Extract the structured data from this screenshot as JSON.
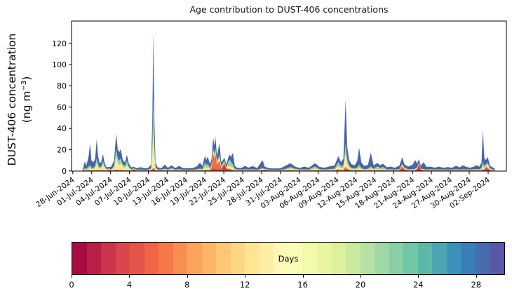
{
  "chart_data": {
    "type": "area",
    "stacked": true,
    "title": "Age contribution to DUST-406 concentrations",
    "ylabel_line1": "DUST-406 concentration",
    "ylabel_units_pre": "(ng m",
    "ylabel_units_sup": "−3",
    "ylabel_units_post": ")",
    "y_ticks": [
      0,
      20,
      40,
      60,
      80,
      100,
      120
    ],
    "y_domain": [
      0,
      141
    ],
    "x_domain_days": [
      -0.2,
      68.9
    ],
    "x_tick_days": [
      0,
      3,
      6,
      9,
      12,
      15,
      18,
      21,
      24,
      27,
      30,
      33,
      36,
      39,
      42,
      45,
      48,
      51,
      54,
      57,
      60,
      63,
      66
    ],
    "x_tick_labels": [
      "28-Jun-2024",
      "01-Jul-2024",
      "04-Jul-2024",
      "07-Jul-2024",
      "10-Jul-2024",
      "13-Jul-2024",
      "16-Jul-2024",
      "19-Jul-2024",
      "22-Jul-2024",
      "25-Jul-2024",
      "28-Jul-2024",
      "31-Jul-2024",
      "03-Aug-2024",
      "06-Aug-2024",
      "09-Aug-2024",
      "12-Aug-2024",
      "15-Aug-2024",
      "18-Aug-2024",
      "21-Aug-2024",
      "24-Aug-2024",
      "27-Aug-2024",
      "30-Aug-2024",
      "02-Sep-2024"
    ],
    "grid": false,
    "legend": "none",
    "bands": [
      {
        "name": "age-0-4-days",
        "color": "#c93a4c"
      },
      {
        "name": "age-4-8-days",
        "color": "#ef6c44"
      },
      {
        "name": "age-8-14-days",
        "color": "#fdea9b"
      },
      {
        "name": "age-14-20-days",
        "color": "#97d5a5"
      },
      {
        "name": "age-20-30-days",
        "color": "#4a62aa"
      }
    ],
    "points_format": [
      "day_since_28_jun",
      "band0",
      "band1",
      "band2",
      "band3",
      "band4"
    ],
    "points": [
      [
        1.45,
        0,
        0,
        0,
        0,
        0
      ],
      [
        1.6,
        0.3,
        0.2,
        0.2,
        0.2,
        0.8
      ],
      [
        1.9,
        0.4,
        0.3,
        0.8,
        1,
        6.5
      ],
      [
        2.15,
        0.3,
        0.3,
        0.6,
        0.8,
        3
      ],
      [
        2.5,
        0.4,
        0.3,
        1.5,
        2,
        9
      ],
      [
        2.75,
        0.4,
        0.4,
        2,
        3,
        20
      ],
      [
        2.95,
        0.3,
        0.3,
        1,
        1.5,
        7
      ],
      [
        3.3,
        0.3,
        0.3,
        1,
        1.5,
        5
      ],
      [
        3.55,
        0.3,
        0.3,
        2,
        2,
        7
      ],
      [
        3.8,
        0.4,
        0.5,
        6,
        5,
        18
      ],
      [
        4.0,
        0.3,
        0.4,
        3,
        3,
        8
      ],
      [
        4.25,
        0.3,
        0.3,
        1.5,
        1.5,
        4
      ],
      [
        4.5,
        0.3,
        0.3,
        2,
        1.5,
        4
      ],
      [
        4.8,
        0.4,
        0.4,
        5.5,
        3,
        6.5
      ],
      [
        5.05,
        0.3,
        0.3,
        2.5,
        1.5,
        3
      ],
      [
        5.35,
        0.3,
        0.2,
        0.8,
        0.6,
        1.6
      ],
      [
        5.75,
        1.1,
        0.3,
        0.5,
        0.4,
        1.5
      ],
      [
        6.1,
        0.3,
        0.2,
        0.5,
        0.5,
        2.5
      ],
      [
        6.55,
        0.4,
        0.3,
        2,
        2,
        5
      ],
      [
        6.9,
        0.5,
        0.8,
        12,
        8,
        14
      ],
      [
        7.15,
        0.4,
        0.5,
        6,
        5,
        8
      ],
      [
        7.45,
        0.4,
        0.4,
        5,
        4,
        8
      ],
      [
        7.6,
        0.4,
        0.5,
        6,
        5,
        9
      ],
      [
        7.95,
        0.3,
        0.4,
        3,
        2.5,
        4
      ],
      [
        8.3,
        0.3,
        0.3,
        2,
        2,
        3.5
      ],
      [
        8.6,
        0.3,
        0.4,
        5,
        4,
        5.5
      ],
      [
        8.9,
        0.3,
        0.3,
        2,
        1.5,
        3
      ],
      [
        9.3,
        0.3,
        0.2,
        0.6,
        0.5,
        1.8
      ],
      [
        9.7,
        1.2,
        0.4,
        0.5,
        0.4,
        1.5
      ],
      [
        10.1,
        0.3,
        0.2,
        0.4,
        0.3,
        1.4
      ],
      [
        10.8,
        0.3,
        0.2,
        0.4,
        0.4,
        2.2
      ],
      [
        11.4,
        0.3,
        0.2,
        0.3,
        0.3,
        1.4
      ],
      [
        12.0,
        0.3,
        0.2,
        0.4,
        0.4,
        1.7
      ],
      [
        12.45,
        0.3,
        0.3,
        1,
        1,
        3.5
      ],
      [
        12.65,
        0.6,
        1.2,
        14,
        12,
        24
      ],
      [
        12.8,
        1,
        2,
        35,
        30,
        63
      ],
      [
        12.95,
        0.8,
        1.5,
        13,
        11,
        24
      ],
      [
        13.15,
        0.3,
        0.3,
        1.5,
        1.5,
        4
      ],
      [
        13.5,
        0.3,
        0.2,
        0.5,
        0.4,
        1.8
      ],
      [
        14.1,
        0.3,
        0.2,
        0.4,
        0.4,
        1.5
      ],
      [
        14.6,
        0.3,
        0.3,
        0.8,
        0.8,
        3.8
      ],
      [
        15.1,
        0.3,
        0.2,
        0.4,
        0.4,
        1.7
      ],
      [
        15.7,
        0.3,
        0.3,
        1,
        1.2,
        2.5
      ],
      [
        16.3,
        0.3,
        0.2,
        0.4,
        0.3,
        1.5
      ],
      [
        16.9,
        0.3,
        0.3,
        0.6,
        0.6,
        3
      ],
      [
        17.5,
        0.3,
        0.2,
        0.4,
        0.3,
        1.5
      ],
      [
        18.3,
        0.3,
        0.2,
        0.3,
        0.3,
        1.4
      ],
      [
        19.1,
        0.3,
        0.2,
        0.4,
        0.3,
        1.6
      ],
      [
        19.7,
        0.4,
        0.3,
        0.5,
        0.5,
        2.5
      ],
      [
        20.2,
        0.4,
        0.3,
        0.8,
        0.8,
        5.5
      ],
      [
        20.6,
        0.3,
        0.3,
        0.6,
        0.6,
        3
      ],
      [
        21.0,
        0.4,
        0.5,
        3,
        4,
        6.5
      ],
      [
        21.2,
        0.3,
        0.4,
        2,
        2.5,
        5
      ],
      [
        21.45,
        0.4,
        0.5,
        2.5,
        3.5,
        6.5
      ],
      [
        21.8,
        0.3,
        0.3,
        1,
        1.2,
        3.5
      ],
      [
        22.05,
        0.8,
        3,
        1.5,
        1,
        5
      ],
      [
        22.3,
        2,
        14,
        3,
        2,
        10
      ],
      [
        22.5,
        1.5,
        10,
        2.5,
        2,
        8
      ],
      [
        22.65,
        2,
        15,
        3,
        2,
        11
      ],
      [
        22.9,
        1,
        5,
        1.5,
        1.5,
        5
      ],
      [
        23.3,
        1.5,
        8,
        3,
        3,
        10.5
      ],
      [
        23.6,
        0.5,
        2,
        1,
        1,
        3.5
      ],
      [
        24.1,
        6,
        2,
        1,
        0.8,
        2.5
      ],
      [
        24.4,
        1.5,
        0.8,
        0.8,
        0.8,
        2.5
      ],
      [
        24.85,
        1,
        1,
        3,
        6,
        4.5
      ],
      [
        25.1,
        0.8,
        0.8,
        2.5,
        5,
        4
      ],
      [
        25.45,
        0.5,
        0.5,
        2,
        3,
        11
      ],
      [
        25.75,
        0.3,
        0.3,
        0.8,
        0.8,
        2.5
      ],
      [
        26.2,
        0.3,
        0.2,
        0.4,
        0.4,
        1.5
      ],
      [
        26.8,
        0.3,
        0.2,
        0.4,
        0.4,
        1.6
      ],
      [
        27.4,
        0.3,
        0.3,
        0.5,
        0.5,
        3.2
      ],
      [
        27.9,
        0.3,
        0.2,
        0.4,
        0.4,
        1.8
      ],
      [
        28.6,
        0.3,
        0.3,
        0.5,
        0.5,
        3
      ],
      [
        29.3,
        0.3,
        0.2,
        0.4,
        0.3,
        1.5
      ],
      [
        30.15,
        0.4,
        0.3,
        1,
        1,
        7.5
      ],
      [
        30.5,
        1,
        0.3,
        0.5,
        0.4,
        1.8
      ],
      [
        31.2,
        0.3,
        0.2,
        0.4,
        0.3,
        1.4
      ],
      [
        32.0,
        0.3,
        0.2,
        0.3,
        0.3,
        1.3
      ],
      [
        33.0,
        0.3,
        0.2,
        0.3,
        0.3,
        1.4
      ],
      [
        33.8,
        0.4,
        0.3,
        0.6,
        0.6,
        3
      ],
      [
        34.6,
        0.4,
        0.4,
        1.5,
        1.5,
        3.5
      ],
      [
        35.3,
        0.3,
        0.3,
        0.8,
        0.8,
        2
      ],
      [
        36.0,
        0.3,
        0.2,
        0.4,
        0.4,
        1.5
      ],
      [
        36.8,
        0.3,
        0.3,
        0.5,
        0.5,
        2.5
      ],
      [
        37.5,
        0.3,
        0.2,
        0.4,
        0.4,
        1.7
      ],
      [
        38.5,
        0.4,
        0.4,
        1.5,
        2,
        3
      ],
      [
        39.2,
        0.3,
        0.3,
        0.6,
        0.6,
        2
      ],
      [
        40.0,
        0.3,
        0.2,
        0.4,
        0.4,
        1.7
      ],
      [
        40.8,
        0.3,
        0.3,
        0.6,
        0.6,
        2.5
      ],
      [
        41.6,
        0.3,
        0.3,
        0.8,
        0.8,
        3
      ],
      [
        42.2,
        0.5,
        1,
        3,
        4,
        5.5
      ],
      [
        42.6,
        0.4,
        0.5,
        1.5,
        2,
        4
      ],
      [
        43.0,
        0.4,
        0.5,
        2,
        2.5,
        6
      ],
      [
        43.35,
        1.5,
        2.5,
        12,
        10,
        41
      ],
      [
        43.6,
        0.8,
        1.2,
        5,
        4,
        12
      ],
      [
        43.9,
        0.5,
        0.8,
        2,
        2,
        5
      ],
      [
        44.3,
        0.4,
        0.4,
        1,
        1,
        3.5
      ],
      [
        44.8,
        0.4,
        0.3,
        0.8,
        0.8,
        3
      ],
      [
        45.2,
        0.4,
        0.4,
        1.2,
        1.5,
        6
      ],
      [
        45.5,
        0.4,
        0.6,
        2,
        3,
        16
      ],
      [
        45.85,
        0.3,
        0.4,
        1,
        1.2,
        5
      ],
      [
        46.3,
        0.3,
        0.3,
        0.6,
        0.6,
        3
      ],
      [
        46.9,
        0.3,
        0.3,
        0.8,
        0.8,
        3.5
      ],
      [
        47.35,
        0.4,
        0.4,
        1.5,
        2,
        13
      ],
      [
        47.8,
        0.3,
        0.3,
        0.8,
        0.8,
        3
      ],
      [
        48.4,
        0.4,
        0.4,
        1.2,
        2.5,
        3
      ],
      [
        48.8,
        0.3,
        0.3,
        0.8,
        1.5,
        2.5
      ],
      [
        49.3,
        0.4,
        0.4,
        1,
        2,
        3
      ],
      [
        49.9,
        0.3,
        0.2,
        0.5,
        0.5,
        2
      ],
      [
        50.5,
        0.3,
        0.3,
        0.5,
        0.5,
        2.5
      ],
      [
        51.2,
        0.3,
        0.2,
        0.4,
        0.4,
        1.7
      ],
      [
        51.9,
        0.3,
        0.3,
        0.6,
        0.5,
        3.3
      ],
      [
        52.35,
        2.5,
        2,
        1.2,
        1,
        6.3
      ],
      [
        52.7,
        0.8,
        0.8,
        0.8,
        0.8,
        3
      ],
      [
        53.3,
        0.3,
        0.3,
        0.5,
        0.5,
        2.5
      ],
      [
        54.0,
        0.3,
        0.3,
        0.6,
        0.6,
        4
      ],
      [
        54.4,
        0.3,
        0.3,
        0.8,
        0.8,
        8
      ],
      [
        54.75,
        1.5,
        0.5,
        0.8,
        0.7,
        3.5
      ],
      [
        55.0,
        5.5,
        1,
        0.8,
        0.6,
        3.3
      ],
      [
        55.3,
        1,
        0.4,
        0.5,
        0.5,
        2.5
      ],
      [
        55.75,
        0.3,
        0.3,
        0.6,
        0.6,
        6.5
      ],
      [
        56.2,
        0.3,
        0.2,
        0.5,
        0.4,
        2.5
      ],
      [
        56.8,
        0.3,
        0.3,
        0.5,
        0.5,
        2.5
      ],
      [
        57.5,
        0.3,
        0.2,
        0.4,
        0.4,
        1.8
      ],
      [
        58.2,
        0.3,
        0.3,
        0.5,
        0.4,
        2.5
      ],
      [
        58.9,
        0.3,
        0.2,
        0.4,
        0.4,
        1.7
      ],
      [
        59.6,
        0.3,
        0.3,
        0.4,
        0.4,
        2.2
      ],
      [
        60.3,
        0.3,
        0.2,
        0.4,
        0.4,
        1.7
      ],
      [
        60.9,
        0.3,
        0.3,
        0.5,
        0.5,
        3.4
      ],
      [
        61.5,
        0.3,
        0.2,
        0.4,
        0.4,
        2
      ],
      [
        61.95,
        0.3,
        0.3,
        0.5,
        0.5,
        3.6
      ],
      [
        62.5,
        0.3,
        0.3,
        0.5,
        0.4,
        2.5
      ],
      [
        63.1,
        0.3,
        0.2,
        0.4,
        0.4,
        1.7
      ],
      [
        63.7,
        0.4,
        0.3,
        0.5,
        0.5,
        2.3
      ],
      [
        64.15,
        0.3,
        0.3,
        0.6,
        0.6,
        3.5
      ],
      [
        64.6,
        0.3,
        0.3,
        0.5,
        0.5,
        2.4
      ],
      [
        64.95,
        0.4,
        0.4,
        1,
        1.2,
        5
      ],
      [
        65.15,
        0.8,
        0.8,
        3,
        4,
        30.5
      ],
      [
        65.4,
        0.6,
        0.6,
        1.5,
        2,
        7
      ],
      [
        65.65,
        2.5,
        1.5,
        1.2,
        1,
        4
      ],
      [
        65.95,
        1.5,
        1.5,
        2.5,
        2.5,
        5
      ],
      [
        66.3,
        0.5,
        0.4,
        0.8,
        0.8,
        2.5
      ],
      [
        66.7,
        0.3,
        0.3,
        0.5,
        0.4,
        1.8
      ],
      [
        67.0,
        0.3,
        0.2,
        0.4,
        0.3,
        1.3
      ],
      [
        67.15,
        0,
        0,
        0,
        0,
        0
      ]
    ],
    "colorbar": {
      "label": "Days",
      "min": 0,
      "max": 30,
      "ticks": [
        0,
        4,
        8,
        12,
        16,
        20,
        24,
        28
      ],
      "segment_colors": [
        "#a70b44",
        "#b92049",
        "#cc344d",
        "#da464d",
        "#e45549",
        "#ef6545",
        "#f57848",
        "#f98e52",
        "#fca35c",
        "#fdb668",
        "#fec776",
        "#fed784",
        "#fee594",
        "#feefa5",
        "#fef9b6",
        "#fafdb8",
        "#f2faab",
        "#eaf69e",
        "#dcf19a",
        "#c8e99e",
        "#b5e1a2",
        "#9fd8a4",
        "#88cfa4",
        "#71c6a5",
        "#5db8a9",
        "#4ca5b1",
        "#3b92b9",
        "#397fb9",
        "#486cb0",
        "#5759a7"
      ]
    }
  },
  "layout_colors": {
    "background": "#ffffff",
    "axis": "#000000",
    "text": "#000000"
  }
}
